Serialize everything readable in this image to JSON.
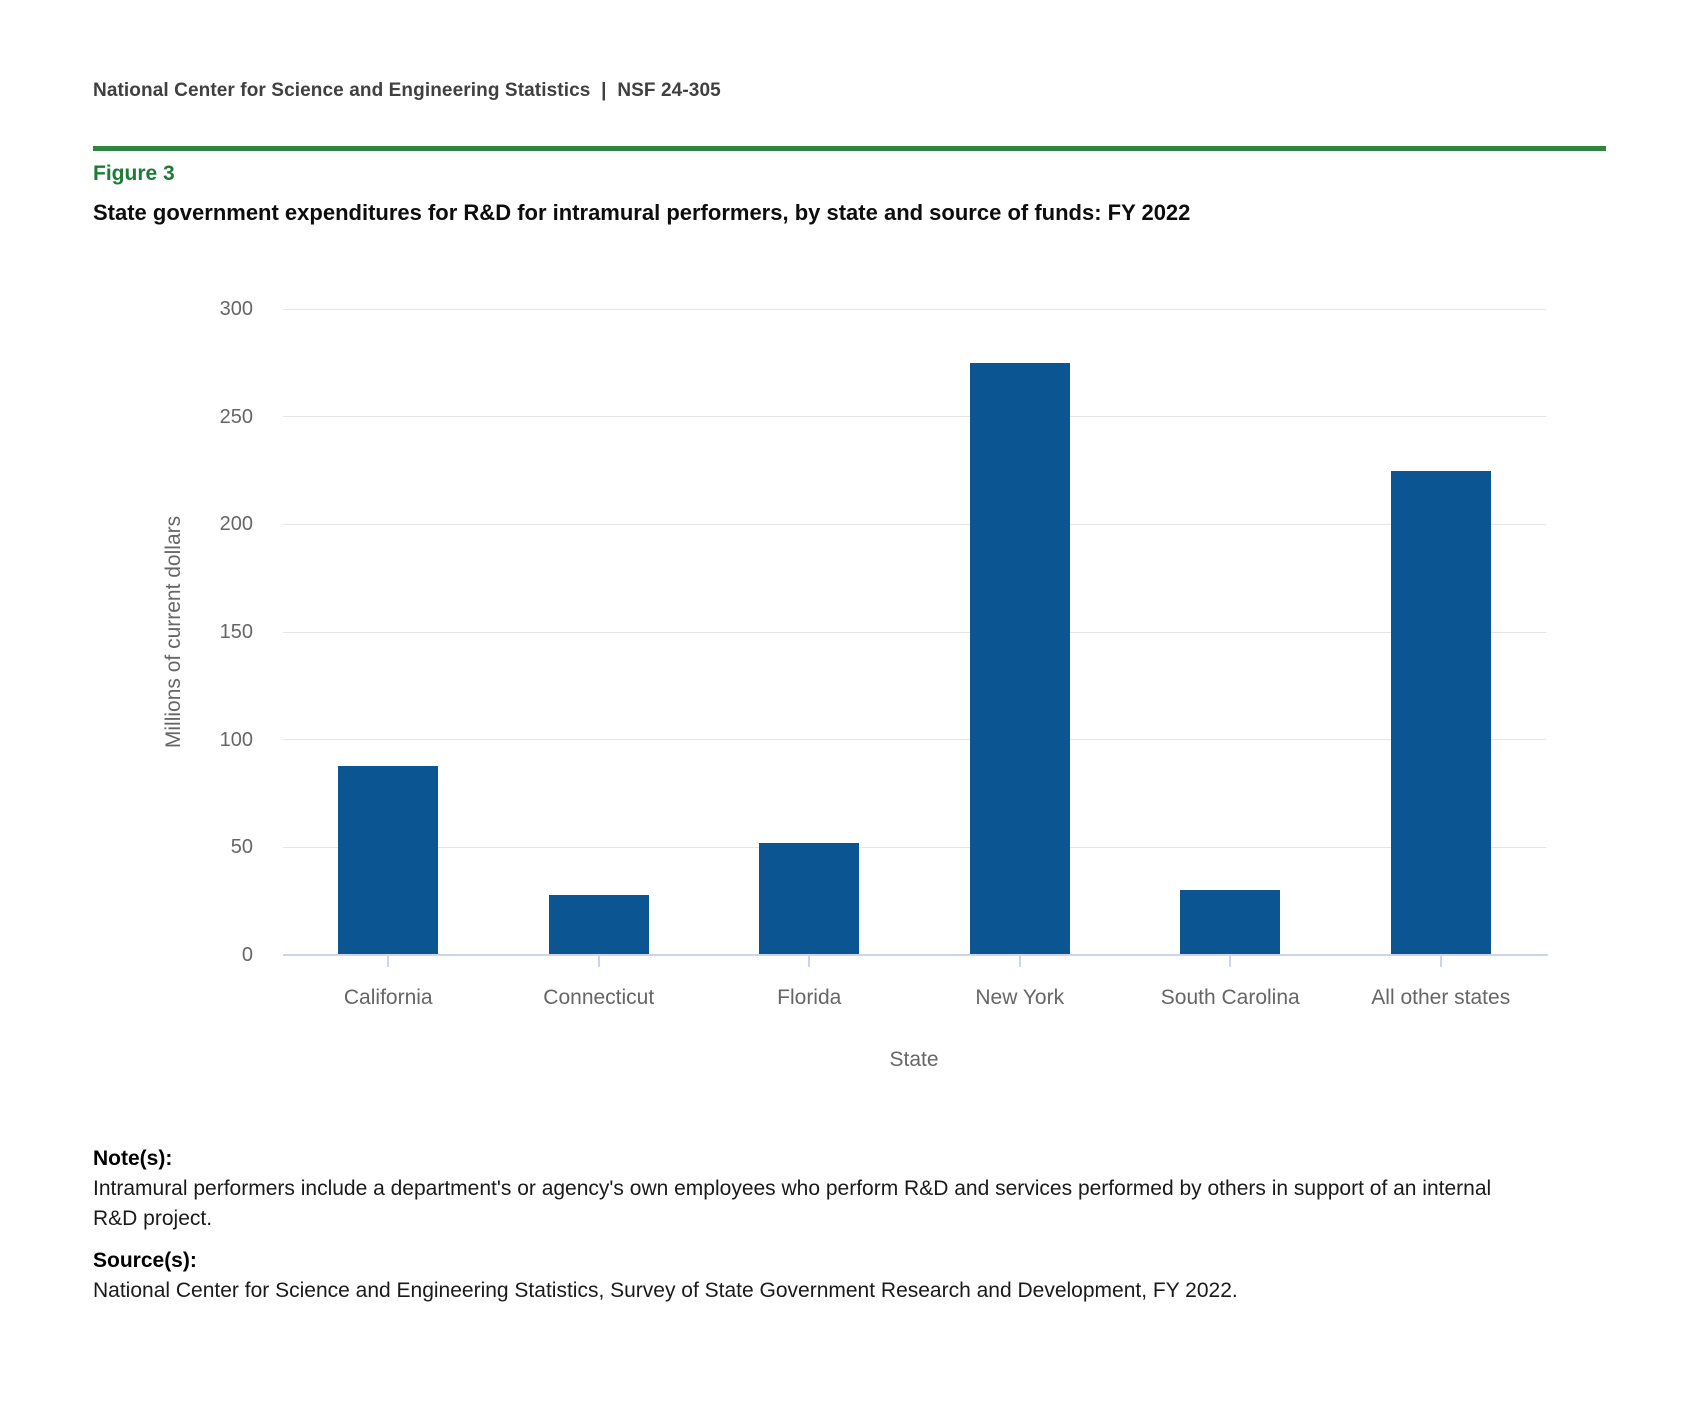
{
  "page": {
    "header": "National Center for Science and Engineering Statistics  |  NSF 24-305",
    "figure_label": "Figure 3",
    "title": "State government expenditures for R&D for intramural performers, by state and source of funds: FY 2022",
    "notes_heading": "Note(s):",
    "notes_text": "Intramural performers include a department's or agency's own employees who perform R&D and services performed by others in support of an internal R&D project.",
    "source_heading": "Source(s):",
    "source_text": "National Center for Science and Engineering Statistics, Survey of State Government Research and Development, FY 2022."
  },
  "chart_data": {
    "type": "bar",
    "categories": [
      "California",
      "Connecticut",
      "Florida",
      "New York",
      "South Carolina",
      "All other states"
    ],
    "values": [
      88,
      28,
      52,
      275,
      30,
      225
    ],
    "title": "State government expenditures for R&D for intramural performers, by state and source of funds: FY 2022",
    "xlabel": "State",
    "ylabel": "Millions of current dollars",
    "ylim": [
      0,
      300
    ],
    "ytick_interval": 50,
    "grid": true,
    "legend": "none",
    "bar_color": "#0a5592",
    "grid_color": "#e6e6e6",
    "axis_line_color": "#ccd6eb",
    "axis_text_color": "#666666"
  },
  "colors": {
    "rule_green": "#2e8540",
    "figure_label_green": "#1d7c35",
    "header_gray": "#404040"
  }
}
